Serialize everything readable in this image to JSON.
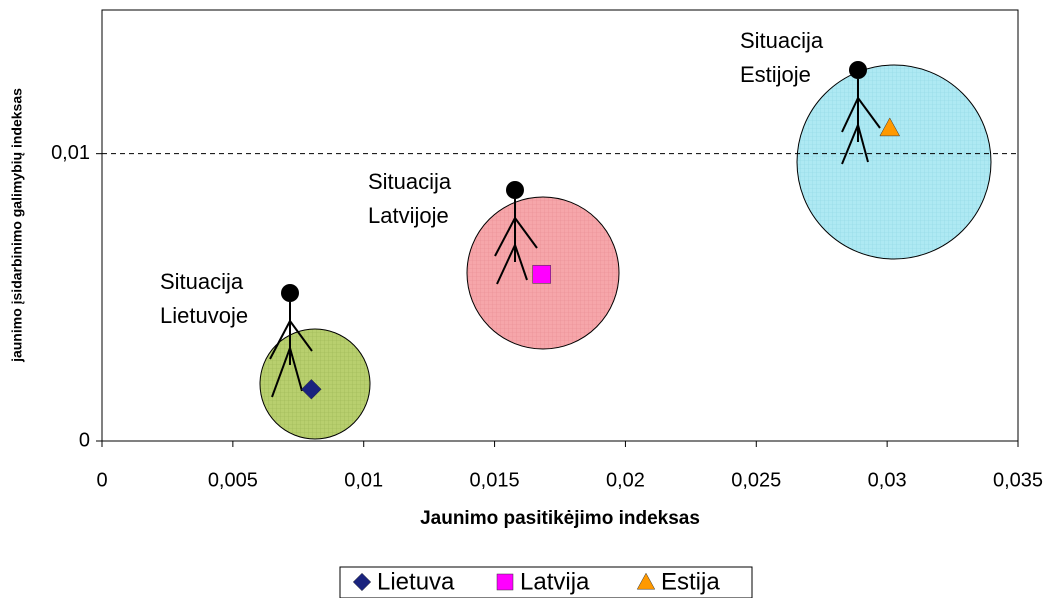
{
  "chart_data": {
    "type": "scatter",
    "x_label": "Jaunimo pasitikėjimo indeksas",
    "y_label": "jaunimo įsidarbinimo galimybių indeksas",
    "xlim": [
      0,
      0.035
    ],
    "xticks": [
      0,
      {
        "value": 0.005,
        "label": "0,005"
      },
      {
        "value": 0.01,
        "label": "0,01"
      },
      {
        "value": 0.015,
        "label": "0,015"
      },
      {
        "value": 0.02,
        "label": "0,02"
      },
      {
        "value": 0.025,
        "label": "0,025"
      },
      {
        "value": 0.03,
        "label": "0,03"
      },
      {
        "value": 0.035,
        "label": "0,035"
      }
    ],
    "ylim": [
      0,
      0.015
    ],
    "yticks": [
      0,
      {
        "value": 0.01,
        "label": "0,01"
      }
    ],
    "grid": "dashed",
    "series": [
      {
        "name": "Lietuva",
        "color": "#1a237e",
        "marker": "diamond",
        "x": [
          0.008
        ],
        "values": [
          0.0018
        ]
      },
      {
        "name": "Latvija",
        "color": "#ff00ff",
        "marker": "square",
        "x": [
          0.0168
        ],
        "values": [
          0.0058
        ]
      },
      {
        "name": "Estija",
        "color": "#ff9900",
        "marker": "triangle",
        "x": [
          0.0301
        ],
        "values": [
          0.0109
        ]
      }
    ],
    "annotations": [
      [
        "Situacija",
        "Lietuvoje"
      ],
      [
        "Situacija",
        "Latvijoje"
      ],
      [
        "Situacija",
        "Estijoje"
      ]
    ],
    "legend": "bottom"
  }
}
